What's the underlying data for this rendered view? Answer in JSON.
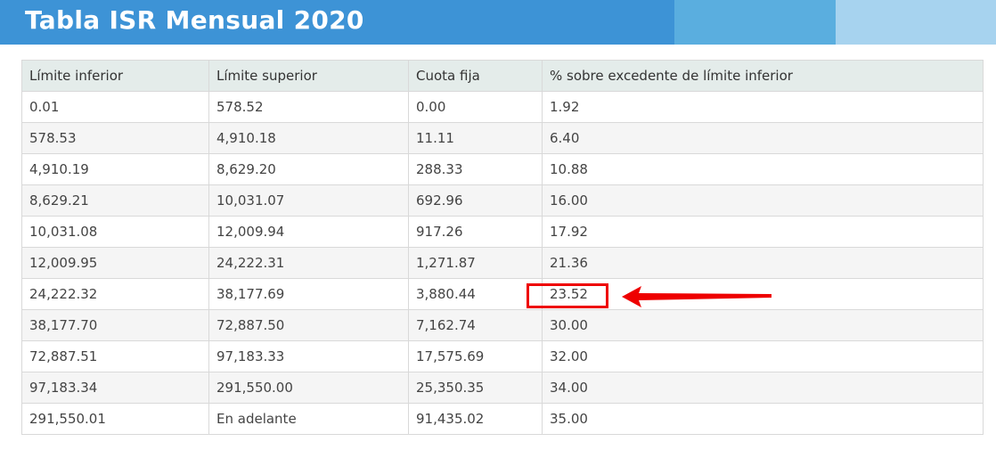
{
  "header": {
    "title": "Tabla ISR Mensual 2020"
  },
  "table": {
    "headers": [
      "Límite inferior",
      "Límite superior",
      "Cuota fija",
      "% sobre excedente de límite inferior"
    ],
    "rows": [
      [
        "0.01",
        "578.52",
        "0.00",
        "1.92"
      ],
      [
        "578.53",
        "4,910.18",
        "11.11",
        "6.40"
      ],
      [
        "4,910.19",
        "8,629.20",
        "288.33",
        "10.88"
      ],
      [
        "8,629.21",
        "10,031.07",
        "692.96",
        "16.00"
      ],
      [
        "10,031.08",
        "12,009.94",
        "917.26",
        "17.92"
      ],
      [
        "12,009.95",
        "24,222.31",
        "1,271.87",
        "21.36"
      ],
      [
        "24,222.32",
        "38,177.69",
        "3,880.44",
        "23.52"
      ],
      [
        "38,177.70",
        "72,887.50",
        "7,162.74",
        "30.00"
      ],
      [
        "72,887.51",
        "97,183.33",
        "17,575.69",
        "32.00"
      ],
      [
        "97,183.34",
        "291,550.00",
        "25,350.35",
        "34.00"
      ],
      [
        "291,550.01",
        "En adelante",
        "91,435.02",
        "35.00"
      ]
    ]
  },
  "annotation": {
    "highlighted_value": "23.52",
    "color": "#ee0000",
    "arrow_icon": "red-arrow-left-icon"
  },
  "colors": {
    "banner": "#3d93d6",
    "banner_stripe_mid": "#5aaedf",
    "banner_stripe_light": "#a7d3ef",
    "table_header_bg": "#e4ecea",
    "row_alt_bg": "#f5f5f5"
  }
}
